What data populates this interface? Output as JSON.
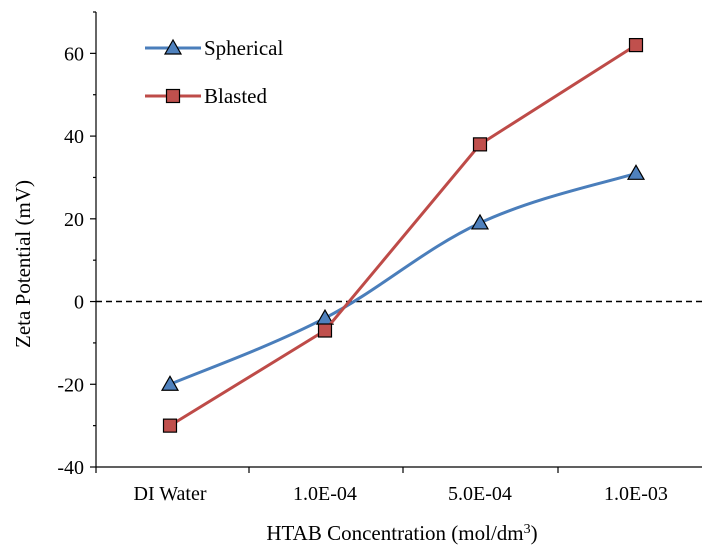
{
  "chart_data": {
    "type": "line",
    "categories": [
      "DI Water",
      "1.0E-04",
      "5.0E-04",
      "1.0E-03"
    ],
    "series": [
      {
        "name": "Spherical",
        "values": [
          -20,
          -4,
          19,
          31
        ],
        "color": "#4a7ebb",
        "marker": "triangle",
        "marker_color": "#4f81bd"
      },
      {
        "name": "Blasted",
        "values": [
          -30,
          -7,
          38,
          62
        ],
        "color": "#be4b48",
        "marker": "square",
        "marker_color": "#c0504d"
      }
    ],
    "xlabel": "HTAB Concentration (mol/dm",
    "xlabel_superscript": "3",
    "xlabel_suffix": ")",
    "ylabel": "Zeta Potential (mV)",
    "ylim": [
      -40,
      70
    ],
    "yticks": [
      -40,
      -20,
      0,
      20,
      40,
      60
    ],
    "zero_line": "dashed",
    "grid": false,
    "legend_position": "top-left"
  }
}
